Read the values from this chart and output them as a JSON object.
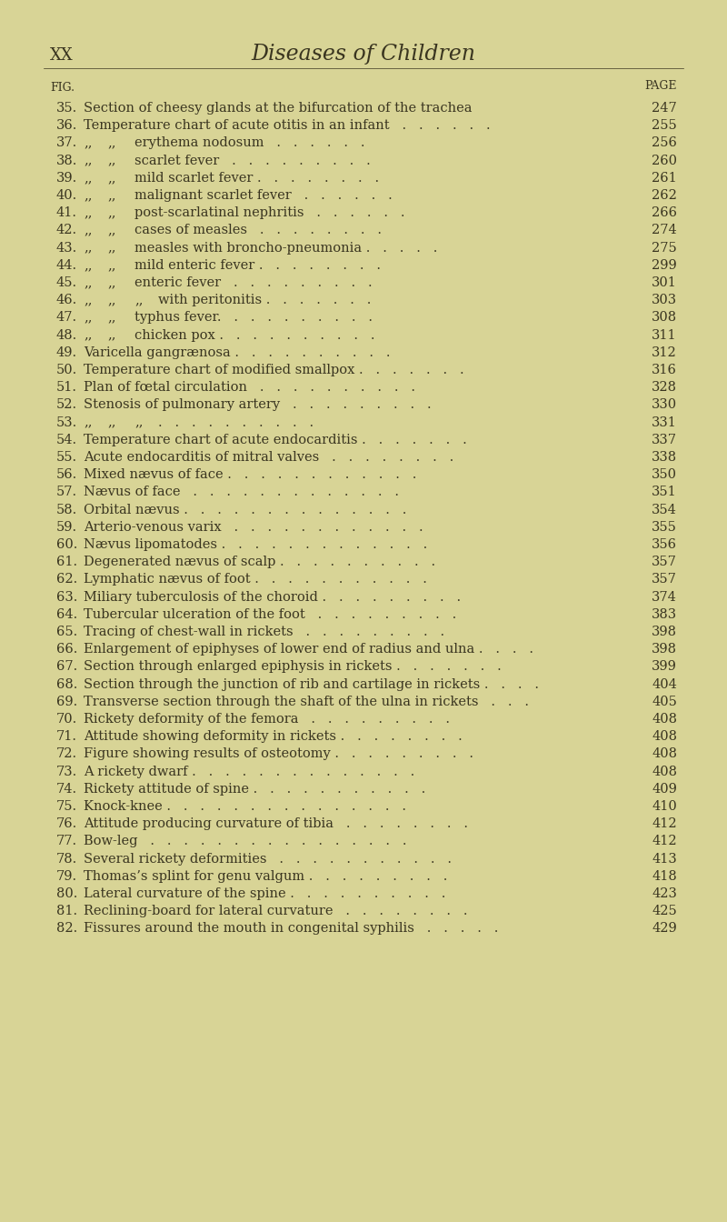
{
  "bg_color": "#d8d496",
  "page_header_left": "XX",
  "page_header_center": "Diseases of Children",
  "fig_label": "FIG.",
  "page_label": "PAGE",
  "entries": [
    {
      "num": "35.",
      "indent": 0,
      "text": "Section of cheesy glands at the bifurcation of the trachea",
      "dot_leader": "   .   .   . ",
      "page": "247"
    },
    {
      "num": "36.",
      "indent": 0,
      "text": "Temperature chart of acute otitis in an infant   .   .   .   .   .   .",
      "dot_leader": "",
      "page": "255"
    },
    {
      "num": "37.",
      "indent": 1,
      "prefix": ",,",
      "prefix2": ",,",
      "text": "erythema nodosum   .   .   .   .   .   .",
      "dot_leader": "",
      "page": "256"
    },
    {
      "num": "38.",
      "indent": 1,
      "prefix": ",,",
      "prefix2": ",,",
      "text": "scarlet fever   .   .   .   .   .   .   .   .   .",
      "dot_leader": "",
      "page": "260"
    },
    {
      "num": "39.",
      "indent": 1,
      "prefix": ",,",
      "prefix2": ",,",
      "text": "mild scarlet fever .   .   .   .   .   .   .   .",
      "dot_leader": "",
      "page": "261"
    },
    {
      "num": "40.",
      "indent": 1,
      "prefix": ",,",
      "prefix2": ",,",
      "text": "malignant scarlet fever   .   .   .   .   .   .",
      "dot_leader": "",
      "page": "262"
    },
    {
      "num": "41.",
      "indent": 1,
      "prefix": ",,",
      "prefix2": ",,",
      "text": "post-scarlatinal nephritis   .   .   .   .   .   .",
      "dot_leader": "",
      "page": "266"
    },
    {
      "num": "42.",
      "indent": 1,
      "prefix": ",,",
      "prefix2": ",,",
      "text": "cases of measles   .   .   .   .   .   .   .   .",
      "dot_leader": "",
      "page": "274"
    },
    {
      "num": "43.",
      "indent": 1,
      "prefix": ",,",
      "prefix2": ",,",
      "text": "measles with broncho-pneumonia .   .   .   .   .",
      "dot_leader": "",
      "page": "275"
    },
    {
      "num": "44.",
      "indent": 1,
      "prefix": ",,",
      "prefix2": ",,",
      "text": "mild enteric fever .   .   .   .   .   .   .   .",
      "dot_leader": "",
      "page": "299"
    },
    {
      "num": "45.",
      "indent": 1,
      "prefix": ",,",
      "prefix2": ",,",
      "text": "enteric fever   .   .   .   .   .   .   .   .   .",
      "dot_leader": "",
      "page": "301"
    },
    {
      "num": "46.",
      "indent": 2,
      "prefix": ",,",
      "prefix2": ",,",
      "prefix3": ",,",
      "text": "with peritonitis .   .   .   .   .   .   .",
      "dot_leader": "",
      "page": "303"
    },
    {
      "num": "47.",
      "indent": 1,
      "prefix": ",,",
      "prefix2": ",,",
      "text": "typhus fever.   .   .   .   .   .   .   .   .   .",
      "dot_leader": "",
      "page": "308"
    },
    {
      "num": "48.",
      "indent": 1,
      "prefix": ",,",
      "prefix2": ",,",
      "text": "chicken pox .   .   .   .   .   .   .   .   .   .",
      "dot_leader": "",
      "page": "311"
    },
    {
      "num": "49.",
      "indent": 0,
      "text": "Varicella gangrænosa .   .   .   .   .   .   .   .   .   .",
      "dot_leader": "",
      "page": "312"
    },
    {
      "num": "50.",
      "indent": 0,
      "text": "Temperature chart of modified smallpox .   .   .   .   .   .   .",
      "dot_leader": "",
      "page": "316"
    },
    {
      "num": "51.",
      "indent": 0,
      "text": "Plan of fœtal circulation   .   .   .   .   .   .   .   .   .   .",
      "dot_leader": "",
      "page": "328"
    },
    {
      "num": "52.",
      "indent": 0,
      "text": "Stenosis of pulmonary artery   .   .   .   .   .   .   .   .   .",
      "dot_leader": "",
      "page": "330"
    },
    {
      "num": "53.",
      "indent": 2,
      "prefix": ",,",
      "prefix2": ",,",
      "prefix3": ",,",
      "text": ".   .   .   .   .   .   .   .   .   .",
      "dot_leader": "",
      "page": "331"
    },
    {
      "num": "54.",
      "indent": 0,
      "text": "Temperature chart of acute endocarditis .   .   .   .   .   .   .",
      "dot_leader": "",
      "page": "337"
    },
    {
      "num": "55.",
      "indent": 0,
      "text": "Acute endocarditis of mitral valves   .   .   .   .   .   .   .   .",
      "dot_leader": "",
      "page": "338"
    },
    {
      "num": "56.",
      "indent": 0,
      "text": "Mixed nævus of face .   .   .   .   .   .   .   .   .   .   .   .",
      "dot_leader": "",
      "page": "350"
    },
    {
      "num": "57.",
      "indent": 0,
      "text": "Nævus of face   .   .   .   .   .   .   .   .   .   .   .   .   .",
      "dot_leader": "",
      "page": "351"
    },
    {
      "num": "58.",
      "indent": 0,
      "text": "Orbital nævus .   .   .   .   .   .   .   .   .   .   .   .   .   .",
      "dot_leader": "",
      "page": "354"
    },
    {
      "num": "59.",
      "indent": 0,
      "text": "Arterio-venous varix   .   .   .   .   .   .   .   .   .   .   .   .",
      "dot_leader": "",
      "page": "355"
    },
    {
      "num": "60.",
      "indent": 0,
      "text": "Nævus lipomatodes .   .   .   .   .   .   .   .   .   .   .   .   .",
      "dot_leader": "",
      "page": "356"
    },
    {
      "num": "61.",
      "indent": 0,
      "text": "Degenerated nævus of scalp .   .   .   .   .   .   .   .   .   .",
      "dot_leader": "",
      "page": "357"
    },
    {
      "num": "62.",
      "indent": 0,
      "text": "Lymphatic nævus of foot .   .   .   .   .   .   .   .   .   .   .",
      "dot_leader": "",
      "page": "357"
    },
    {
      "num": "63.",
      "indent": 0,
      "text": "Miliary tuberculosis of the choroid .   .   .   .   .   .   .   .   .",
      "dot_leader": "",
      "page": "374"
    },
    {
      "num": "64.",
      "indent": 0,
      "text": "Tubercular ulceration of the foot   .   .   .   .   .   .   .   .   .",
      "dot_leader": "",
      "page": "383"
    },
    {
      "num": "65.",
      "indent": 0,
      "text": "Tracing of chest-wall in rickets   .   .   .   .   .   .   .   .   .",
      "dot_leader": "",
      "page": "398"
    },
    {
      "num": "66.",
      "indent": 0,
      "text": "Enlargement of epiphyses of lower end of radius and ulna .   .   .   .",
      "dot_leader": "",
      "page": "398"
    },
    {
      "num": "67.",
      "indent": 0,
      "text": "Section through enlarged epiphysis in rickets .   .   .   .   .   .   .",
      "dot_leader": "",
      "page": "399"
    },
    {
      "num": "68.",
      "indent": 0,
      "text": "Section through the junction of rib and cartilage in rickets .   .   .   .",
      "dot_leader": "",
      "page": "404"
    },
    {
      "num": "69.",
      "indent": 0,
      "text": "Transverse section through the shaft of the ulna in rickets   .   .   .",
      "dot_leader": "",
      "page": "405"
    },
    {
      "num": "70.",
      "indent": 0,
      "text": "Rickety deformity of the femora   .   .   .   .   .   .   .   .   .",
      "dot_leader": "",
      "page": "408"
    },
    {
      "num": "71.",
      "indent": 0,
      "text": "Attitude showing deformity in rickets .   .   .   .   .   .   .   .",
      "dot_leader": "",
      "page": "408"
    },
    {
      "num": "72.",
      "indent": 0,
      "text": "Figure showing results of osteotomy .   .   .   .   .   .   .   .   .",
      "dot_leader": "",
      "page": "408"
    },
    {
      "num": "73.",
      "indent": 0,
      "text": "A rickety dwarf .   .   .   .   .   .   .   .   .   .   .   .   .   .",
      "dot_leader": "",
      "page": "408"
    },
    {
      "num": "74.",
      "indent": 0,
      "text": "Rickety attitude of spine .   .   .   .   .   .   .   .   .   .   .",
      "dot_leader": "",
      "page": "409"
    },
    {
      "num": "75.",
      "indent": 0,
      "text": "Knock-knee .   .   .   .   .   .   .   .   .   .   .   .   .   .   .",
      "dot_leader": "",
      "page": "410"
    },
    {
      "num": "76.",
      "indent": 0,
      "text": "Attitude producing curvature of tibia   .   .   .   .   .   .   .   .",
      "dot_leader": "",
      "page": "412"
    },
    {
      "num": "77.",
      "indent": 0,
      "text": "Bow-leg   .   .   .   .   .   .   .   .   .   .   .   .   .   .   .   .",
      "dot_leader": "",
      "page": "412"
    },
    {
      "num": "78.",
      "indent": 0,
      "text": "Several rickety deformities   .   .   .   .   .   .   .   .   .   .   .",
      "dot_leader": "",
      "page": "413"
    },
    {
      "num": "79.",
      "indent": 0,
      "text": "Thomas’s splint for genu valgum .   .   .   .   .   .   .   .   .",
      "dot_leader": "",
      "page": "418"
    },
    {
      "num": "80.",
      "indent": 0,
      "text": "Lateral curvature of the spine .   .   .   .   .   .   .   .   .   .",
      "dot_leader": "",
      "page": "423"
    },
    {
      "num": "81.",
      "indent": 0,
      "text": "Reclining-board for lateral curvature   .   .   .   .   .   .   .   .",
      "dot_leader": "",
      "page": "425"
    },
    {
      "num": "82.",
      "indent": 0,
      "text": "Fissures around the mouth in congenital syphilis   .   .   .   .   .",
      "dot_leader": "",
      "page": "429"
    }
  ],
  "text_color": "#3a3520",
  "title_color": "#3a3520"
}
